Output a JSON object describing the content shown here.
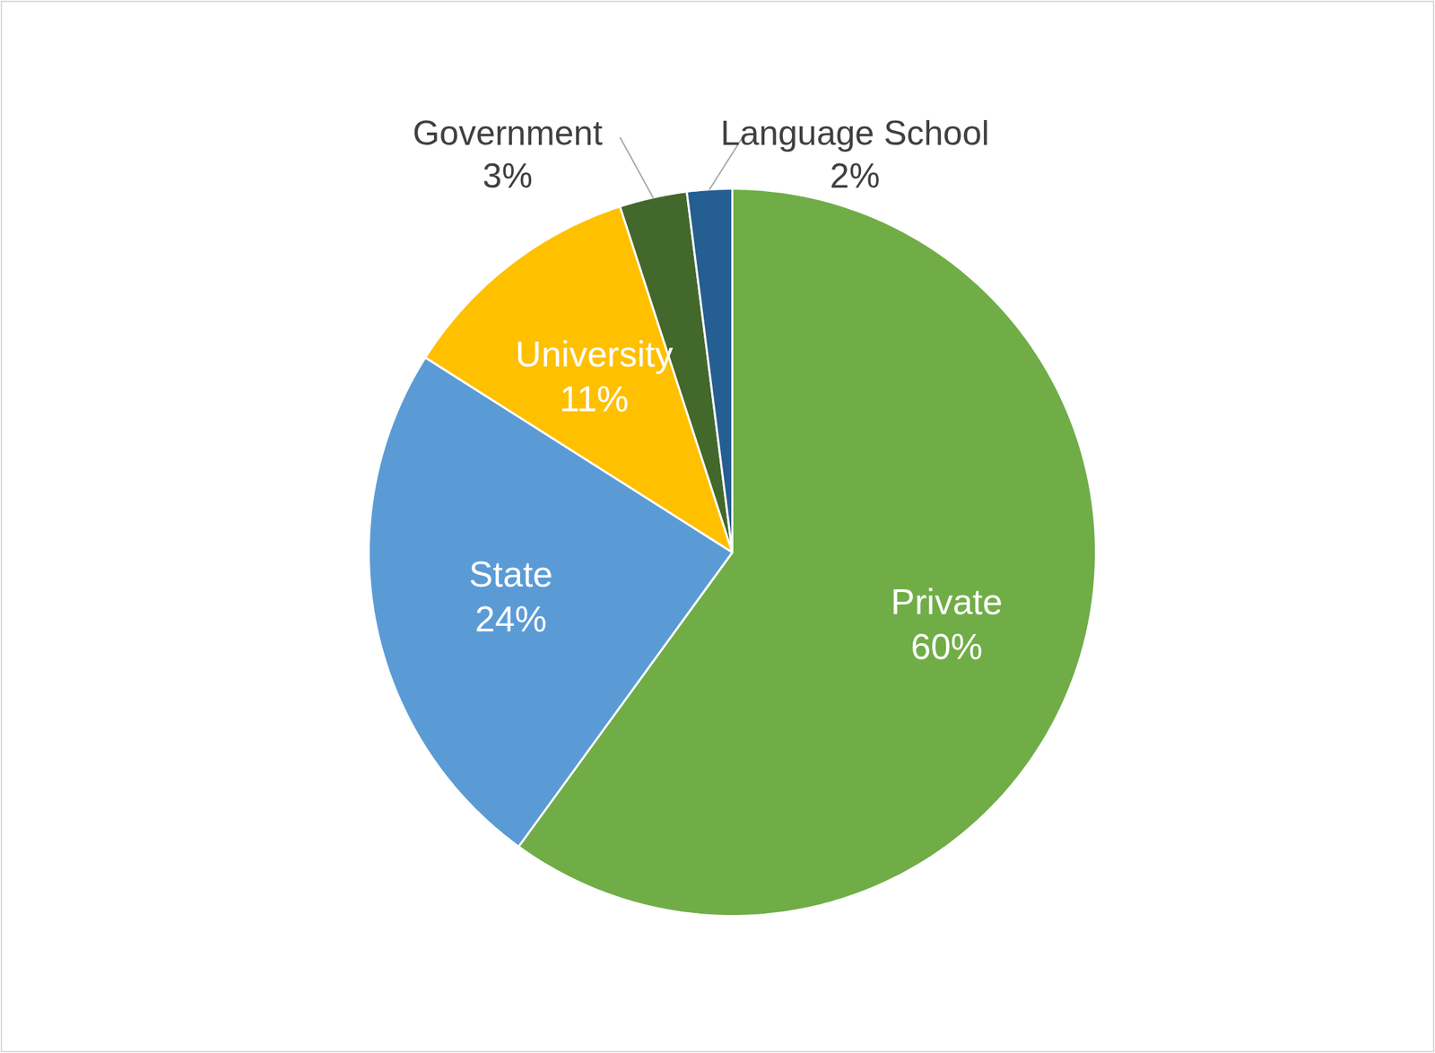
{
  "chart_data": {
    "type": "pie",
    "categories": [
      "Private",
      "State",
      "University",
      "Government",
      "Language School"
    ],
    "values": [
      60,
      24,
      11,
      3,
      2
    ],
    "value_labels": [
      "60%",
      "24%",
      "11%",
      "3%",
      "2%"
    ],
    "colors": [
      "#70ad47",
      "#5b9bd5",
      "#ffc000",
      "#43682b",
      "#255e91"
    ],
    "data_labels": true
  }
}
